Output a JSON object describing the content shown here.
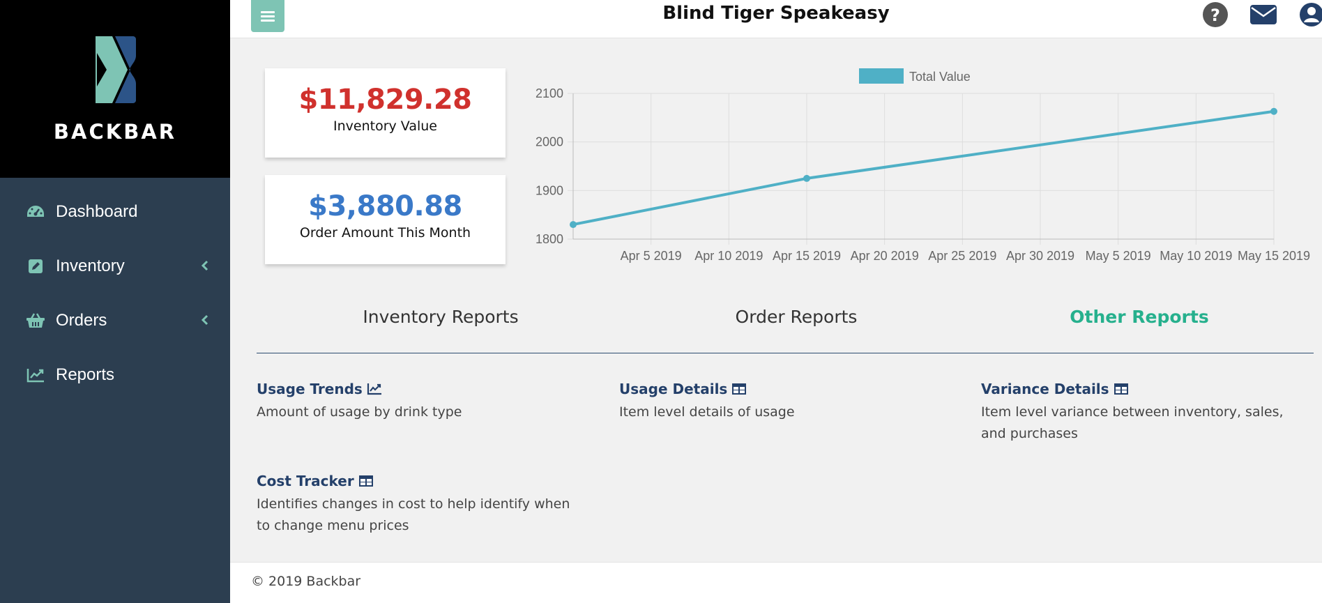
{
  "brand": {
    "name": "BACKBAR"
  },
  "sidebar": {
    "items": [
      {
        "label": "Dashboard",
        "icon": "dashboard-icon",
        "has_submenu": false
      },
      {
        "label": "Inventory",
        "icon": "edit-icon",
        "has_submenu": true
      },
      {
        "label": "Orders",
        "icon": "basket-icon",
        "has_submenu": true
      },
      {
        "label": "Reports",
        "icon": "chart-line-icon",
        "has_submenu": false
      }
    ]
  },
  "header": {
    "title": "Blind Tiger Speakeasy",
    "icons": [
      "menu-icon",
      "help-icon",
      "mail-icon",
      "user-icon"
    ]
  },
  "stats": {
    "inventory_value": "$11,829.28",
    "inventory_label": "Inventory Value",
    "order_amount": "$3,880.88",
    "order_label": "Order Amount This Month"
  },
  "chart_data": {
    "type": "line",
    "legend": "Total Value",
    "legend_position": "top",
    "grid": true,
    "x_ticks": [
      "Apr 5 2019",
      "Apr 10 2019",
      "Apr 15 2019",
      "Apr 20 2019",
      "Apr 25 2019",
      "Apr 30 2019",
      "May 5 2019",
      "May 10 2019",
      "May 15 2019"
    ],
    "x_range": [
      "2019-03-31",
      "2019-05-15"
    ],
    "y_ticks": [
      1800,
      1900,
      2000,
      2100
    ],
    "ylim": [
      1800,
      2100
    ],
    "series": [
      {
        "name": "Total Value",
        "color": "#4fb0c6",
        "points": [
          {
            "x": "2019-03-31",
            "y": 1830
          },
          {
            "x": "2019-04-15",
            "y": 1925
          },
          {
            "x": "2019-05-15",
            "y": 2063
          }
        ]
      }
    ]
  },
  "tabs": [
    {
      "label": "Inventory Reports",
      "active": false
    },
    {
      "label": "Order Reports",
      "active": false
    },
    {
      "label": "Other Reports",
      "active": true
    }
  ],
  "reports": [
    {
      "title": "Usage Trends",
      "icon": "chart-line-icon",
      "description": "Amount of usage by drink type"
    },
    {
      "title": "Usage Details",
      "icon": "table-icon",
      "description": "Item level details of usage"
    },
    {
      "title": "Variance Details",
      "icon": "table-icon",
      "description": "Item level variance between inventory, sales, and purchases"
    },
    {
      "title": "Cost Tracker",
      "icon": "table-icon",
      "description": "Identifies changes in cost to help identify when to change menu prices"
    }
  ],
  "footer": {
    "text": "© 2019 Backbar"
  },
  "colors": {
    "sidebar_bg": "#2c3e50",
    "accent": "#7ec4b4",
    "active_tab": "#26b08d",
    "inventory_value": "#d0312d",
    "order_amount": "#3a79c8",
    "report_title": "#24406a"
  }
}
